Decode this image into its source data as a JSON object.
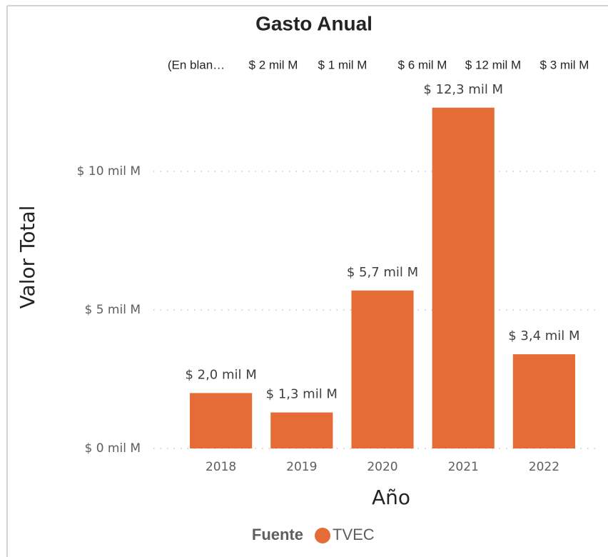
{
  "chart_data": {
    "type": "bar",
    "title": "Gasto Anual",
    "header_labels": [
      "(En blan…",
      "$ 2 mil M",
      "$ 1 mil M",
      "$ 6 mil M",
      "$ 12 mil M",
      "$ 3 mil M"
    ],
    "categories": [
      "2018",
      "2019",
      "2020",
      "2021",
      "2022"
    ],
    "series": [
      {
        "name": "TVEC",
        "color": "#E66C37",
        "values": [
          2.0,
          1.3,
          5.7,
          12.3,
          3.4
        ],
        "value_labels": [
          "$ 2,0 mil M",
          "$ 1,3 mil M",
          "$ 5,7 mil M",
          "$ 12,3 mil M",
          "$ 3,4 mil M"
        ]
      }
    ],
    "legend_title": "Fuente",
    "x_label": "Año",
    "y_label": "Valor Total",
    "ylim": [
      0,
      13
    ],
    "yticks": [
      {
        "value": 0,
        "label": "$ 0 mil M"
      },
      {
        "value": 5,
        "label": "$ 5 mil M"
      },
      {
        "value": 10,
        "label": "$ 10 mil M"
      }
    ],
    "grid": true
  }
}
